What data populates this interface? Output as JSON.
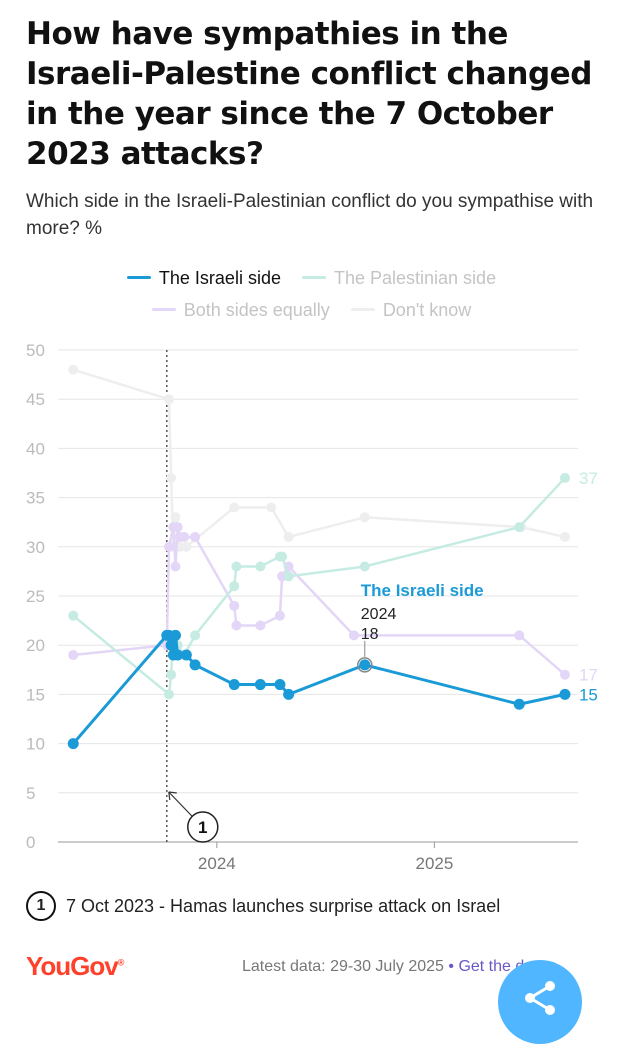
{
  "title": "How have sympathies in the Israeli-Palestine conflict changed in the year since the 7 October 2023 attacks?",
  "subtitle": "Which side in the Israeli-Palestinian conflict do you sympathise with more? %",
  "legend": [
    {
      "label": "The Israeli side",
      "color": "#1a9ad6"
    },
    {
      "label": "The Palestinian side",
      "color": "#c5ebe3"
    },
    {
      "label": "Both sides equally",
      "color": "#e3d6f7"
    },
    {
      "label": "Don't know",
      "color": "#eeeeee"
    }
  ],
  "annotation": {
    "number": "1",
    "text": "7 Oct 2023 - Hamas launches surprise attack on Israel"
  },
  "tooltip": {
    "series": "The Israeli side",
    "x_label": "2024",
    "value": "18"
  },
  "footer": {
    "logo": "YouGov",
    "logo_mark": "®",
    "latest": "Latest data: 29-30 July 2025",
    "separator": "•",
    "link": "Get the data"
  },
  "chart_data": {
    "type": "line",
    "ylabel": "%",
    "ylim": [
      0,
      50
    ],
    "yticks": [
      "0",
      "5",
      "10",
      "15",
      "20",
      "25",
      "30",
      "35",
      "40",
      "45",
      "50"
    ],
    "xticks": [
      {
        "value": 2024.0,
        "label": "2024"
      },
      {
        "value": 2025.0,
        "label": "2025"
      }
    ],
    "xlim": [
      2023.27,
      2025.66
    ],
    "event_line": {
      "x": 2023.77,
      "label": "1"
    },
    "series": [
      {
        "name": "Don't know",
        "color": "#eeeeee",
        "end_label": "",
        "x": [
          2023.34,
          2023.78,
          2023.79,
          2023.8,
          2023.81,
          2023.83,
          2023.86,
          2024.08,
          2024.25,
          2024.33,
          2024.68,
          2025.4,
          2025.6
        ],
        "y": [
          48,
          45,
          37,
          30,
          33,
          30,
          30,
          34,
          34,
          31,
          33,
          32,
          31
        ]
      },
      {
        "name": "Both sides equally",
        "color": "#e3d6f7",
        "end_label": "17",
        "x": [
          2023.34,
          2023.77,
          2023.78,
          2023.8,
          2023.81,
          2023.82,
          2023.83,
          2023.85,
          2023.9,
          2024.08,
          2024.09,
          2024.2,
          2024.29,
          2024.3,
          2024.33,
          2024.63,
          2025.39,
          2025.6
        ],
        "y": [
          19,
          20,
          30,
          32,
          28,
          32,
          31,
          31,
          31,
          24,
          22,
          22,
          23,
          27,
          28,
          21,
          21,
          17
        ]
      },
      {
        "name": "The Palestinian side",
        "color": "#c5ebe3",
        "end_label": "37",
        "x": [
          2023.34,
          2023.78,
          2023.79,
          2023.8,
          2023.82,
          2023.85,
          2023.9,
          2024.08,
          2024.09,
          2024.2,
          2024.29,
          2024.3,
          2024.33,
          2024.68,
          2025.39,
          2025.6
        ],
        "y": [
          23,
          15,
          17,
          21,
          20,
          19,
          21,
          26,
          28,
          28,
          29,
          29,
          27,
          28,
          32,
          37
        ]
      },
      {
        "name": "The Israeli side",
        "color": "#1a9ad6",
        "end_label": "15",
        "x": [
          2023.34,
          2023.77,
          2023.78,
          2023.79,
          2023.8,
          2023.81,
          2023.82,
          2023.86,
          2023.9,
          2024.08,
          2024.2,
          2024.29,
          2024.33,
          2024.68,
          2025.39,
          2025.6
        ],
        "y": [
          10,
          21,
          21,
          20,
          19,
          21,
          19,
          19,
          18,
          16,
          16,
          16,
          15,
          18,
          14,
          15
        ]
      }
    ]
  }
}
